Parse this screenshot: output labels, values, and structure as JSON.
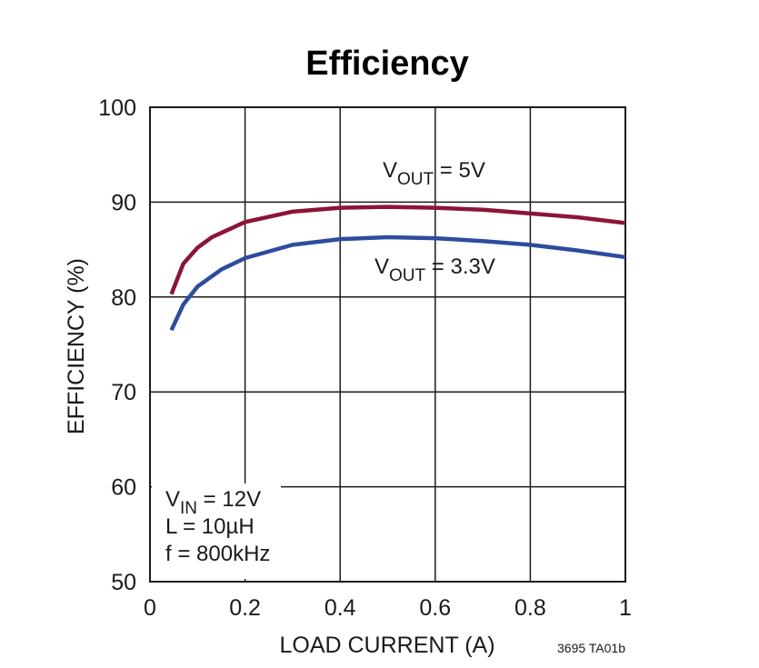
{
  "chart_data": {
    "type": "line",
    "title": "Efficiency",
    "xlabel": "LOAD CURRENT (A)",
    "ylabel": "EFFICIENCY (%)",
    "xlim": [
      0,
      1
    ],
    "ylim": [
      50,
      100
    ],
    "x_ticks": [
      0,
      0.2,
      0.4,
      0.6,
      0.8,
      1
    ],
    "x_tick_labels": [
      "0",
      "0.2",
      "0.4",
      "0.6",
      "0.8",
      "1"
    ],
    "y_ticks": [
      50,
      60,
      70,
      80,
      90,
      100
    ],
    "y_tick_labels": [
      "50",
      "60",
      "70",
      "80",
      "90",
      "100"
    ],
    "grid": true,
    "series": [
      {
        "name": "VOUT = 5V",
        "label_main": "V",
        "label_sub": "OUT",
        "label_rest": " = 5V",
        "color": "#8b1538",
        "x": [
          0.045,
          0.07,
          0.1,
          0.13,
          0.2,
          0.3,
          0.4,
          0.5,
          0.6,
          0.7,
          0.8,
          0.9,
          1.0
        ],
        "y": [
          80.3,
          83.5,
          85.2,
          86.3,
          87.9,
          89.0,
          89.4,
          89.5,
          89.4,
          89.2,
          88.8,
          88.4,
          87.8
        ]
      },
      {
        "name": "VOUT = 3.3V",
        "label_main": "V",
        "label_sub": "OUT",
        "label_rest": " = 3.3V",
        "color": "#2e4c9e",
        "x": [
          0.045,
          0.07,
          0.1,
          0.15,
          0.2,
          0.3,
          0.4,
          0.5,
          0.6,
          0.7,
          0.8,
          0.9,
          1.0
        ],
        "y": [
          76.5,
          79.2,
          81.1,
          82.9,
          84.1,
          85.5,
          86.1,
          86.3,
          86.2,
          85.9,
          85.5,
          84.9,
          84.2
        ]
      }
    ],
    "conditions": {
      "vin_main": "V",
      "vin_sub": "IN",
      "vin_rest": " = 12V",
      "inductor": "L = 10µH",
      "frequency": "f = 800kHz"
    },
    "figure_code": "3695 TA01b"
  }
}
